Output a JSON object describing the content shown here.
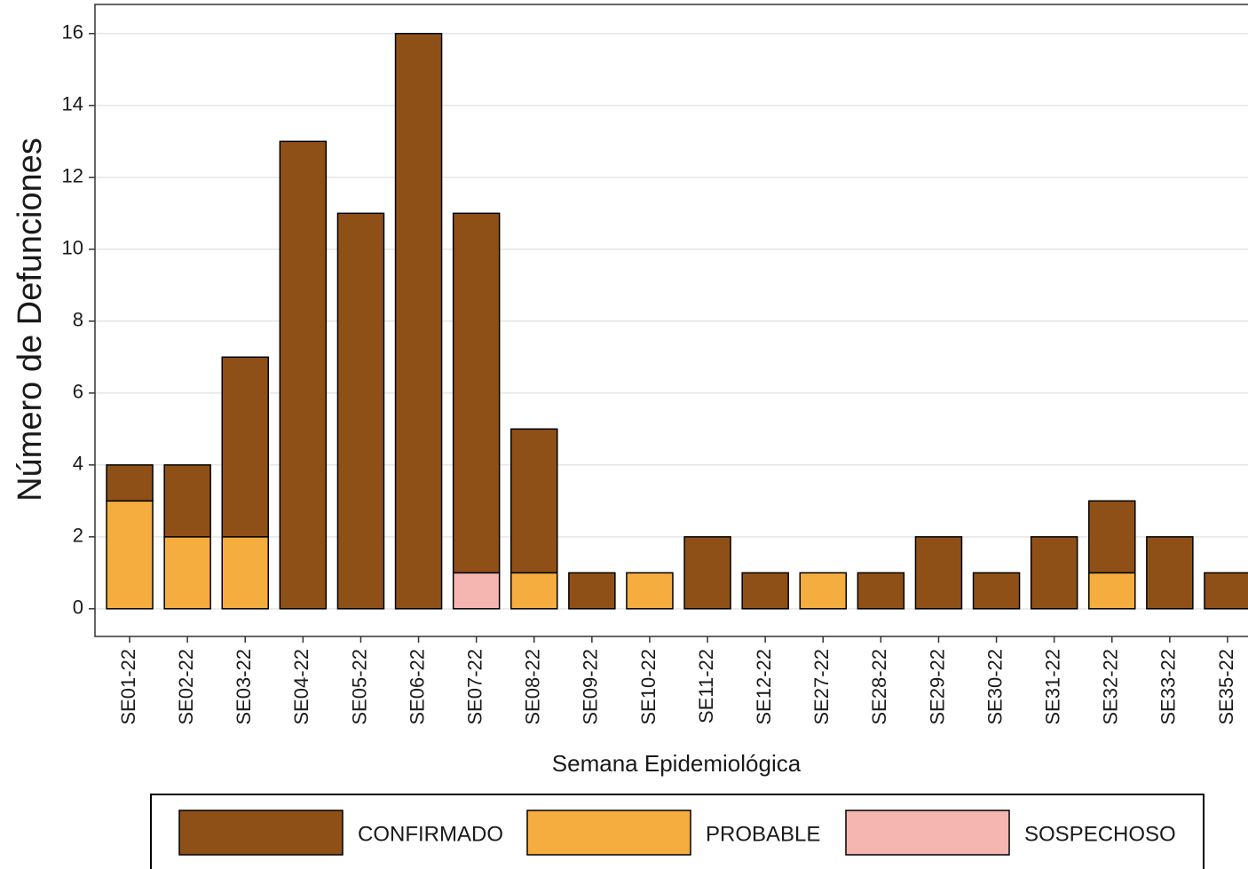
{
  "chart_data": {
    "type": "bar",
    "stacked": true,
    "x_label": "Semana Epidemiológica",
    "y_label": "Número de Defunciones",
    "categories": [
      "SE01-22",
      "SE02-22",
      "SE03-22",
      "SE04-22",
      "SE05-22",
      "SE06-22",
      "SE07-22",
      "SE08-22",
      "SE09-22",
      "SE10-22",
      "SE11-22",
      "SE12-22",
      "SE27-22",
      "SE28-22",
      "SE29-22",
      "SE30-22",
      "SE31-22",
      "SE32-22",
      "SE33-22",
      "SE35-22"
    ],
    "series": [
      {
        "name": "CONFIRMADO",
        "color": "#8f5018",
        "values": [
          1,
          2,
          5,
          13,
          11,
          16,
          10,
          4,
          1,
          0,
          2,
          1,
          0,
          1,
          2,
          1,
          2,
          2,
          2,
          1
        ]
      },
      {
        "name": "PROBABLE",
        "color": "#f5ad40",
        "values": [
          3,
          2,
          2,
          0,
          0,
          0,
          0,
          1,
          0,
          1,
          0,
          0,
          1,
          0,
          0,
          0,
          0,
          1,
          0,
          0
        ]
      },
      {
        "name": "SOSPECHOSO",
        "color": "#f5b5b1",
        "values": [
          0,
          0,
          0,
          0,
          0,
          0,
          1,
          0,
          0,
          0,
          0,
          0,
          0,
          0,
          0,
          0,
          0,
          0,
          0,
          0
        ]
      }
    ],
    "ylim": [
      -0.77,
      16.81
    ],
    "yticks": [
      0,
      2,
      4,
      6,
      8,
      10,
      12,
      14,
      16
    ],
    "grid": true,
    "legend_position": "bottom"
  }
}
